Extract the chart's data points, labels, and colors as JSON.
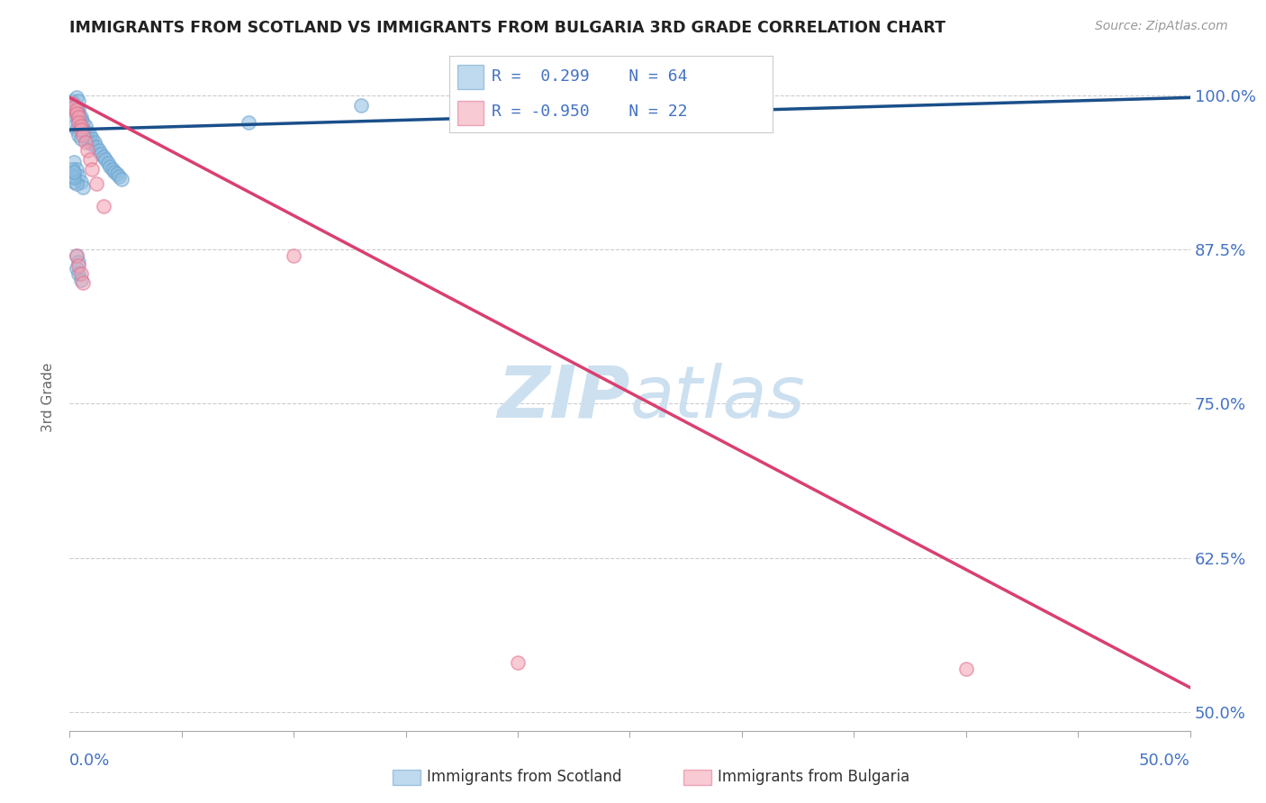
{
  "title": "IMMIGRANTS FROM SCOTLAND VS IMMIGRANTS FROM BULGARIA 3RD GRADE CORRELATION CHART",
  "source": "Source: ZipAtlas.com",
  "ylabel": "3rd Grade",
  "yticks": [
    0.5,
    0.625,
    0.75,
    0.875,
    1.0
  ],
  "ytick_labels": [
    "50.0%",
    "62.5%",
    "75.0%",
    "87.5%",
    "100.0%"
  ],
  "xlim": [
    0.0,
    0.5
  ],
  "ylim": [
    0.485,
    1.025
  ],
  "scotland_color": "#8bbde0",
  "scotland_edge": "#6aa0cc",
  "bulgaria_color": "#f4a0b0",
  "bulgaria_edge": "#e07090",
  "scotland_R": "0.299",
  "scotland_N": "64",
  "bulgaria_R": "-0.950",
  "bulgaria_N": "22",
  "watermark_zip": "ZIP",
  "watermark_atlas": "atlas",
  "watermark_color": "#cce0f0",
  "legend_scotland_label": "Immigrants from Scotland",
  "legend_bulgaria_label": "Immigrants from Bulgaria",
  "background_color": "#ffffff",
  "grid_color": "#cccccc",
  "title_color": "#222222",
  "axis_label_color": "#4472c4",
  "scotland_scatter_x": [
    0.001,
    0.001,
    0.002,
    0.002,
    0.002,
    0.003,
    0.003,
    0.003,
    0.003,
    0.004,
    0.004,
    0.004,
    0.004,
    0.005,
    0.005,
    0.005,
    0.006,
    0.006,
    0.007,
    0.007,
    0.008,
    0.008,
    0.009,
    0.01,
    0.01,
    0.011,
    0.012,
    0.013,
    0.014,
    0.015,
    0.016,
    0.017,
    0.018,
    0.019,
    0.02,
    0.021,
    0.022,
    0.023,
    0.002,
    0.003,
    0.004,
    0.005,
    0.006,
    0.003,
    0.004,
    0.003,
    0.004,
    0.005,
    0.002,
    0.003,
    0.001,
    0.002,
    0.001,
    0.002,
    0.001,
    0.003,
    0.004,
    0.13,
    0.29,
    0.08,
    0.002,
    0.003,
    0.004,
    0.005
  ],
  "scotland_scatter_y": [
    0.995,
    0.992,
    0.993,
    0.99,
    0.988,
    0.99,
    0.988,
    0.985,
    0.982,
    0.988,
    0.985,
    0.982,
    0.978,
    0.982,
    0.98,
    0.975,
    0.978,
    0.972,
    0.975,
    0.968,
    0.97,
    0.963,
    0.968,
    0.965,
    0.96,
    0.962,
    0.958,
    0.955,
    0.952,
    0.95,
    0.948,
    0.945,
    0.942,
    0.94,
    0.938,
    0.936,
    0.934,
    0.932,
    0.946,
    0.94,
    0.935,
    0.93,
    0.925,
    0.87,
    0.865,
    0.86,
    0.855,
    0.85,
    0.93,
    0.928,
    0.935,
    0.933,
    0.94,
    0.938,
    0.992,
    0.998,
    0.995,
    0.992,
    0.988,
    0.978,
    0.975,
    0.972,
    0.968,
    0.965
  ],
  "bulgaria_scatter_x": [
    0.001,
    0.002,
    0.003,
    0.003,
    0.004,
    0.004,
    0.005,
    0.005,
    0.006,
    0.007,
    0.008,
    0.009,
    0.01,
    0.012,
    0.015,
    0.003,
    0.004,
    0.005,
    0.006,
    0.1,
    0.4,
    0.2
  ],
  "bulgaria_scatter_y": [
    0.993,
    0.99,
    0.988,
    0.985,
    0.982,
    0.978,
    0.975,
    0.972,
    0.968,
    0.962,
    0.955,
    0.948,
    0.94,
    0.928,
    0.91,
    0.87,
    0.862,
    0.855,
    0.848,
    0.87,
    0.535,
    0.54
  ],
  "scotland_line_x": [
    0.0,
    0.5
  ],
  "scotland_line_y": [
    0.972,
    0.998
  ],
  "bulgaria_line_x": [
    0.0,
    0.5
  ],
  "bulgaria_line_y": [
    0.998,
    0.52
  ]
}
